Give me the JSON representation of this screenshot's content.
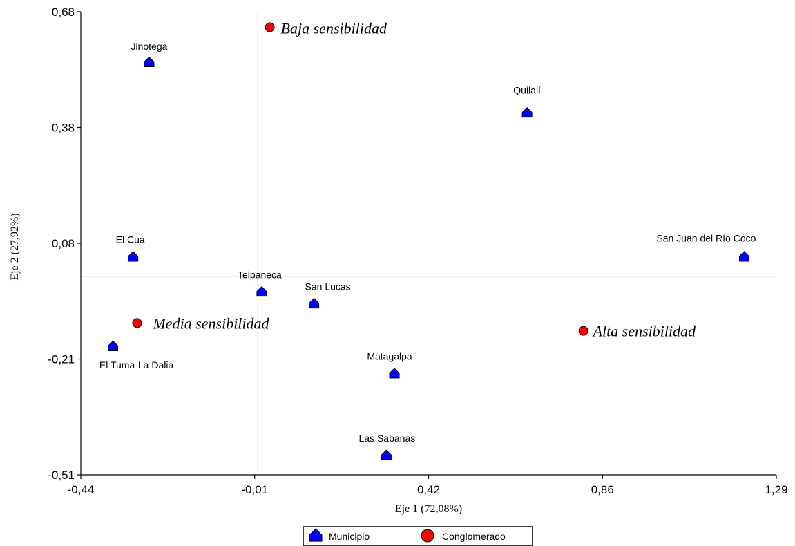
{
  "chart_data": {
    "type": "scatter",
    "xlabel": "Eje 1 (72,08%)",
    "ylabel": "Eje 2 (27,92%)",
    "xlim": [
      -0.44,
      1.29
    ],
    "ylim": [
      -0.51,
      0.68
    ],
    "x_ticks": [
      "-0,44",
      "-0,01",
      "0,42",
      "0,86",
      "1,29"
    ],
    "y_ticks": [
      "0,68",
      "0,38",
      "0,08",
      "-0,21",
      "-0,51"
    ],
    "reference_lines": {
      "x": 0.0,
      "y": 0.0
    },
    "grid": false,
    "legend_position": "bottom-center",
    "series": [
      {
        "name": "Municipio",
        "marker": "house",
        "color": "#0000ff",
        "points": [
          {
            "label": "Jinotega",
            "x": -0.27,
            "y": 0.55
          },
          {
            "label": "Quilalí",
            "x": 0.67,
            "y": 0.42
          },
          {
            "label": "El Cuá",
            "x": -0.31,
            "y": 0.05
          },
          {
            "label": "San Juan del Río Coco",
            "x": 1.21,
            "y": 0.05
          },
          {
            "label": "Telpaneca",
            "x": 0.01,
            "y": -0.04
          },
          {
            "label": "San Lucas",
            "x": 0.14,
            "y": -0.07
          },
          {
            "label": "El Tuma-La Dalia",
            "x": -0.36,
            "y": -0.18
          },
          {
            "label": "Matagalpa",
            "x": 0.34,
            "y": -0.25
          },
          {
            "label": "Las Sabanas",
            "x": 0.32,
            "y": -0.46
          }
        ]
      },
      {
        "name": "Conglomerado",
        "marker": "circle",
        "color": "#ff0000",
        "points": [
          {
            "label": "Baja sensibilidad",
            "x": 0.03,
            "y": 0.64
          },
          {
            "label": "Media sensibilidad",
            "x": -0.3,
            "y": -0.12
          },
          {
            "label": "Alta sensibilidad",
            "x": 0.81,
            "y": -0.14
          }
        ]
      }
    ]
  },
  "legend": {
    "items": [
      {
        "label": "Municipio"
      },
      {
        "label": "Conglomerado"
      }
    ]
  }
}
